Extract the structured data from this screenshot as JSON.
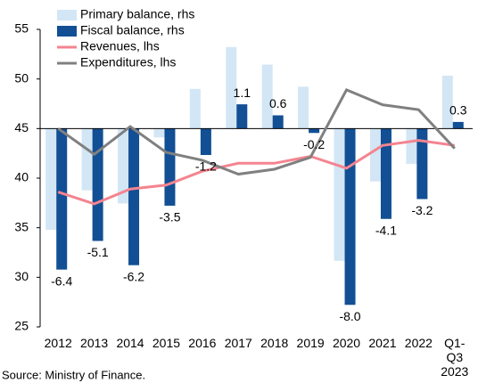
{
  "chart_data": {
    "type": "bar_line",
    "categories": [
      "2012",
      "2013",
      "2014",
      "2015",
      "2016",
      "2017",
      "2018",
      "2019",
      "2020",
      "2021",
      "2022",
      "Q1-Q3 2023"
    ],
    "series": [
      {
        "name": "Primary balance, rhs",
        "type": "bar",
        "axis": "y2",
        "color": "#d3e6f5",
        "values": [
          -4.6,
          -2.8,
          -3.4,
          -0.4,
          1.8,
          3.7,
          2.9,
          1.9,
          -6.0,
          -2.4,
          -1.6,
          2.4
        ]
      },
      {
        "name": "Fiscal balance, rhs",
        "type": "bar",
        "axis": "y2",
        "color": "#124f94",
        "values": [
          -6.4,
          -5.1,
          -6.2,
          -3.5,
          -1.2,
          1.1,
          0.6,
          -0.2,
          -8.0,
          -4.1,
          -3.2,
          0.3
        ],
        "value_labels": [
          "-6.4",
          "-5.1",
          "-6.2",
          "-3.5",
          "-1.2",
          "1.1",
          "0.6",
          "-0.2",
          "-8.0",
          "-4.1",
          "-3.2",
          "0.3"
        ]
      },
      {
        "name": "Revenues, lhs",
        "type": "line",
        "color": "#f4848f",
        "values": [
          38.6,
          37.4,
          38.9,
          39.3,
          40.7,
          41.5,
          41.5,
          42.2,
          41.0,
          43.3,
          43.8,
          43.3
        ]
      },
      {
        "name": "Expenditures, lhs",
        "type": "line",
        "color": "#808080",
        "values": [
          45.0,
          42.4,
          45.2,
          42.6,
          41.8,
          40.4,
          40.9,
          42.1,
          48.9,
          47.4,
          46.9,
          43.0
        ]
      }
    ],
    "ylim": [
      25,
      55
    ],
    "yticks": [
      25,
      30,
      35,
      40,
      45,
      50,
      55
    ],
    "y2lim": [
      -9,
      4.5
    ],
    "source": "Source: Ministry of Finance."
  }
}
